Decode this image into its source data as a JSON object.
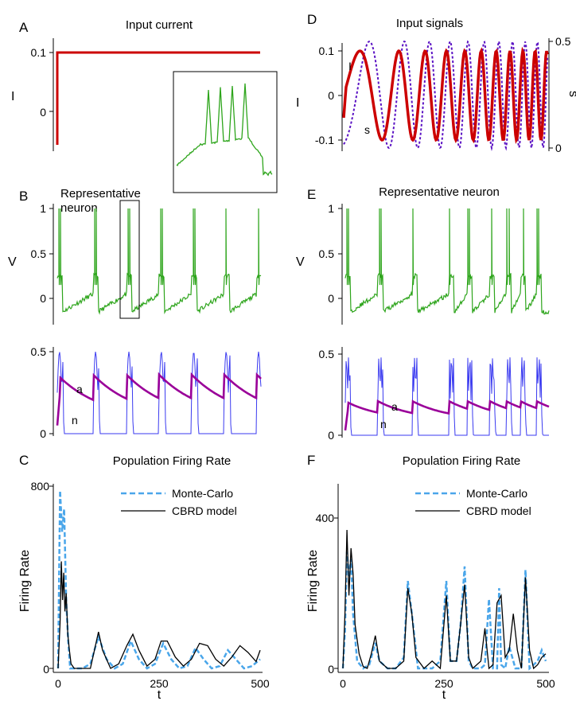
{
  "panel_labels": [
    "A",
    "B",
    "C",
    "D",
    "E",
    "F"
  ],
  "colors": {
    "current": "#cc0000",
    "s_signal": "#5b13c4",
    "voltage": "#2ea51c",
    "n_gate": "#3a3af0",
    "a_adapt": "#9a0099",
    "monte_carlo": "#4aa6ea",
    "cbrd": "#000000"
  },
  "chart_data": [
    {
      "panel": "A",
      "type": "line",
      "title": "Input current",
      "ylabel": "I",
      "ylim": [
        -0.06,
        0.11
      ],
      "yticks": [
        "0.1",
        "0"
      ],
      "xlim": [
        0,
        500
      ],
      "series": [
        {
          "style": "step",
          "x": [
            0,
            0,
            500
          ],
          "y": [
            -0.05,
            0.1,
            0.1
          ]
        }
      ],
      "inset": {
        "description_visible": false,
        "shows": "zoomed membrane voltage trace (green)"
      }
    },
    {
      "panel": "B",
      "type": "line",
      "title": "Representative neuron",
      "ylabel": "V",
      "ylim": [
        -0.25,
        1.0
      ],
      "yticks": [
        "1",
        "0.5",
        "0"
      ],
      "xlim": [
        0,
        500
      ],
      "burst_times": [
        0,
        88,
        170,
        250,
        330,
        410,
        490
      ],
      "gate_panel": {
        "ylim": [
          0,
          0.5
        ],
        "yticks": [
          "0.5",
          "0"
        ],
        "labels": [
          "a",
          "n"
        ]
      }
    },
    {
      "panel": "C",
      "type": "line",
      "title": "Population Firing Rate",
      "xlabel": "t",
      "ylabel": "Firing Rate",
      "xlim": [
        0,
        500
      ],
      "ylim": [
        0,
        800
      ],
      "xticks": [
        "0",
        "250",
        "500"
      ],
      "yticks": [
        "800",
        "0"
      ],
      "legend": "top-right",
      "series": [
        {
          "name": "Monte-Carlo",
          "style": "dashed",
          "x": [
            0,
            5,
            10,
            15,
            20,
            25,
            30,
            40,
            60,
            80,
            100,
            120,
            140,
            160,
            180,
            200,
            220,
            240,
            260,
            280,
            300,
            320,
            340,
            360,
            380,
            400,
            420,
            440,
            460,
            480,
            500
          ],
          "y": [
            0,
            780,
            600,
            700,
            300,
            120,
            0,
            0,
            0,
            20,
            140,
            40,
            0,
            20,
            120,
            40,
            0,
            20,
            110,
            40,
            0,
            10,
            90,
            40,
            0,
            10,
            80,
            40,
            0,
            10,
            40
          ]
        },
        {
          "name": "CBRD model",
          "style": "solid",
          "x": [
            0,
            5,
            8,
            11,
            14,
            17,
            20,
            24,
            28,
            32,
            40,
            60,
            80,
            90,
            100,
            110,
            130,
            150,
            170,
            185,
            200,
            220,
            240,
            255,
            270,
            290,
            310,
            330,
            350,
            370,
            390,
            410,
            430,
            450,
            470,
            490,
            500
          ],
          "y": [
            0,
            200,
            470,
            300,
            420,
            250,
            330,
            150,
            80,
            20,
            0,
            0,
            0,
            80,
            160,
            80,
            0,
            20,
            100,
            150,
            80,
            10,
            40,
            120,
            120,
            50,
            10,
            40,
            110,
            100,
            40,
            10,
            50,
            100,
            70,
            30,
            80
          ]
        }
      ]
    },
    {
      "panel": "D",
      "type": "line",
      "title": "Input signals",
      "ylabel": "I",
      "ylabel_right": "s",
      "ylim": [
        -0.12,
        0.12
      ],
      "yticks": [
        "0.1",
        "0",
        "-0.1"
      ],
      "ylim_right": [
        0,
        0.5
      ],
      "yticks_right": [
        "0.5",
        "0"
      ],
      "xlim": [
        0,
        500
      ],
      "series_labels": [
        "I",
        "s"
      ]
    },
    {
      "panel": "E",
      "type": "line",
      "title": "Representative neuron",
      "ylabel": "V",
      "ylim": [
        -0.25,
        1.0
      ],
      "yticks": [
        "1",
        "0.5",
        "0"
      ],
      "xlim": [
        0,
        500
      ],
      "gate_panel": {
        "ylim": [
          0,
          0.5
        ],
        "yticks": [
          "0.5",
          "0"
        ],
        "labels": [
          "a",
          "n"
        ]
      }
    },
    {
      "panel": "F",
      "type": "line",
      "title": "Population Firing Rate",
      "xlabel": "t",
      "ylabel": "Firing Rate",
      "xlim": [
        0,
        500
      ],
      "ylim": [
        0,
        500
      ],
      "xticks": [
        "0",
        "250",
        "500"
      ],
      "yticks": [
        "400",
        "0"
      ],
      "legend": "top-right",
      "series": [
        {
          "name": "Monte-Carlo",
          "style": "dashed",
          "x": [
            0,
            5,
            10,
            15,
            20,
            25,
            35,
            50,
            65,
            80,
            90,
            110,
            130,
            150,
            160,
            170,
            185,
            200,
            220,
            240,
            255,
            265,
            280,
            290,
            300,
            310,
            320,
            340,
            350,
            360,
            370,
            380,
            385,
            390,
            400,
            410,
            425,
            440,
            450,
            460,
            470,
            480,
            490,
            500
          ],
          "y": [
            0,
            100,
            320,
            250,
            300,
            150,
            20,
            0,
            10,
            70,
            20,
            0,
            0,
            30,
            240,
            150,
            0,
            0,
            0,
            20,
            240,
            20,
            20,
            120,
            280,
            20,
            0,
            0,
            10,
            190,
            0,
            0,
            220,
            10,
            0,
            60,
            0,
            0,
            270,
            0,
            10,
            20,
            50,
            20
          ]
        },
        {
          "name": "CBRD model",
          "style": "solid",
          "x": [
            0,
            5,
            10,
            15,
            20,
            25,
            30,
            40,
            50,
            60,
            70,
            80,
            90,
            110,
            130,
            150,
            160,
            170,
            180,
            200,
            220,
            240,
            255,
            265,
            280,
            290,
            300,
            310,
            320,
            340,
            350,
            360,
            370,
            380,
            390,
            400,
            410,
            420,
            430,
            440,
            450,
            460,
            470,
            480,
            490,
            500
          ],
          "y": [
            0,
            150,
            380,
            200,
            330,
            260,
            120,
            40,
            5,
            0,
            40,
            90,
            20,
            0,
            0,
            20,
            220,
            150,
            30,
            0,
            20,
            0,
            200,
            20,
            20,
            120,
            230,
            30,
            0,
            20,
            110,
            0,
            10,
            180,
            200,
            30,
            50,
            150,
            50,
            0,
            250,
            50,
            0,
            10,
            30,
            40
          ]
        }
      ]
    }
  ]
}
